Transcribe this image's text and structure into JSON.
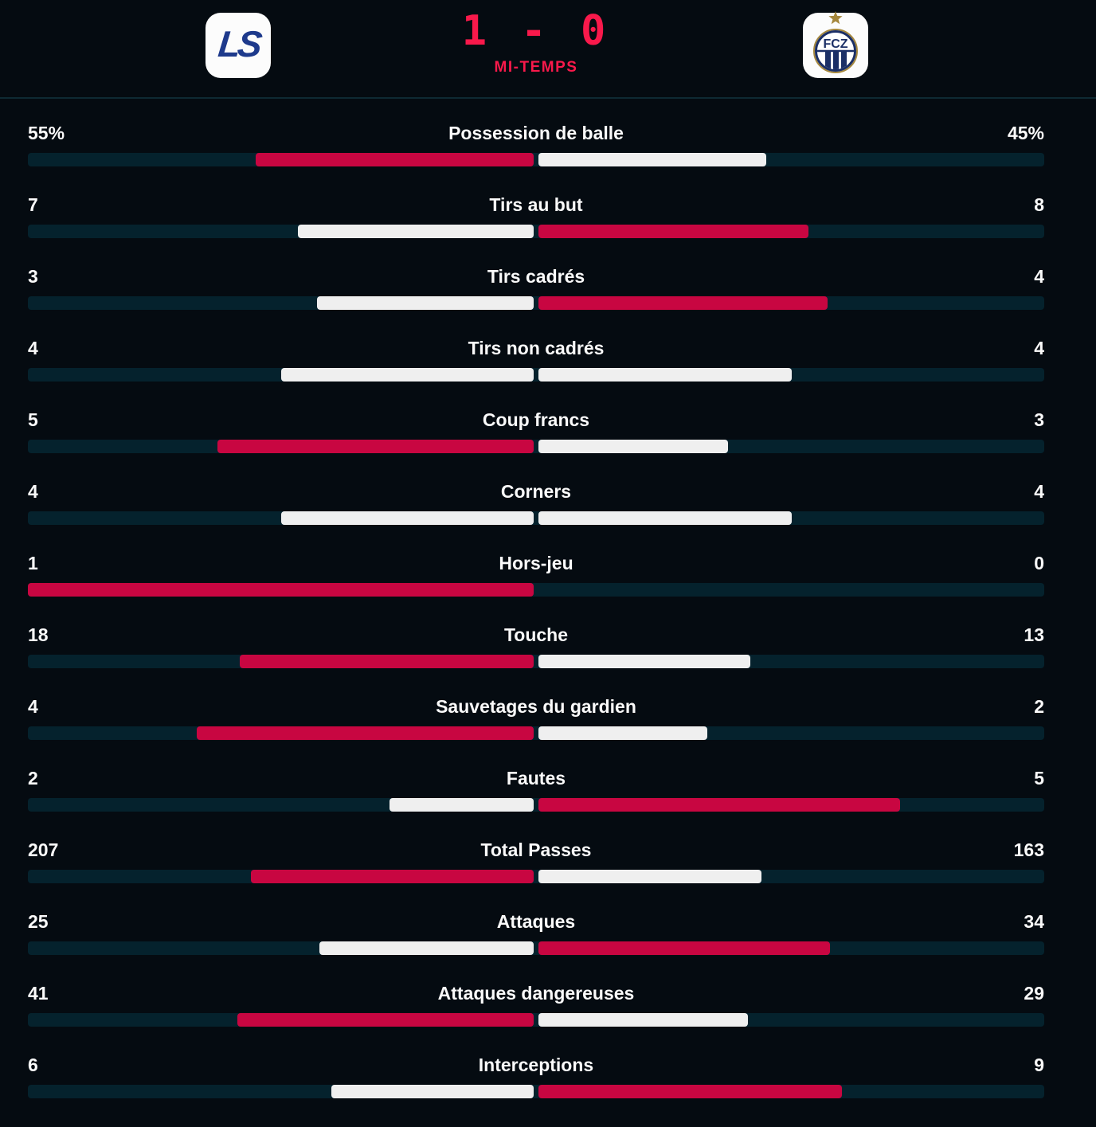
{
  "header": {
    "score": "1 - 0",
    "period_label": "MI-TEMPS",
    "home_logo": {
      "icon": "lausanne-sport-logo",
      "monogram": "LS"
    },
    "away_logo": {
      "icon": "fc-zurich-logo",
      "text": "FCZ"
    }
  },
  "colors": {
    "background": "#050B11",
    "score_red": "#F9194B",
    "bar_track": "#05222D",
    "bar_red": "#C80641",
    "bar_white": "#EFEFEF",
    "divider": "#0E2A33",
    "text": "#FAFAFA",
    "ls_navy": "#1E3A8C",
    "fcz_navy": "#1B2F66",
    "fcz_gold": "#A5873C"
  },
  "stats": [
    {
      "label": "Possession de balle",
      "home_display": "55%",
      "away_display": "45%",
      "home_value": 55,
      "away_value": 45
    },
    {
      "label": "Tirs au but",
      "home_display": "7",
      "away_display": "8",
      "home_value": 7,
      "away_value": 8
    },
    {
      "label": "Tirs cadrés",
      "home_display": "3",
      "away_display": "4",
      "home_value": 3,
      "away_value": 4
    },
    {
      "label": "Tirs non cadrés",
      "home_display": "4",
      "away_display": "4",
      "home_value": 4,
      "away_value": 4
    },
    {
      "label": "Coup francs",
      "home_display": "5",
      "away_display": "3",
      "home_value": 5,
      "away_value": 3
    },
    {
      "label": "Corners",
      "home_display": "4",
      "away_display": "4",
      "home_value": 4,
      "away_value": 4
    },
    {
      "label": "Hors-jeu",
      "home_display": "1",
      "away_display": "0",
      "home_value": 1,
      "away_value": 0
    },
    {
      "label": "Touche",
      "home_display": "18",
      "away_display": "13",
      "home_value": 18,
      "away_value": 13
    },
    {
      "label": "Sauvetages du gardien",
      "home_display": "4",
      "away_display": "2",
      "home_value": 4,
      "away_value": 2
    },
    {
      "label": "Fautes",
      "home_display": "2",
      "away_display": "5",
      "home_value": 2,
      "away_value": 5
    },
    {
      "label": "Total Passes",
      "home_display": "207",
      "away_display": "163",
      "home_value": 207,
      "away_value": 163
    },
    {
      "label": "Attaques",
      "home_display": "25",
      "away_display": "34",
      "home_value": 25,
      "away_value": 34
    },
    {
      "label": "Attaques dangereuses",
      "home_display": "41",
      "away_display": "29",
      "home_value": 41,
      "away_value": 29
    },
    {
      "label": "Interceptions",
      "home_display": "6",
      "away_display": "9",
      "home_value": 6,
      "away_value": 9
    }
  ]
}
